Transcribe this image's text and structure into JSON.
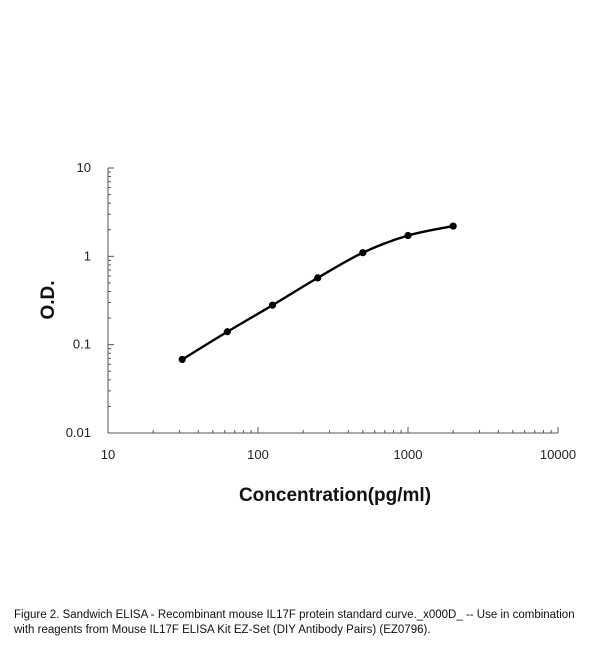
{
  "chart_data": {
    "type": "line",
    "x_scale": "log",
    "y_scale": "log",
    "xlabel": "Concentration(pg/ml)",
    "ylabel": "O.D.",
    "xlim": [
      10,
      10000
    ],
    "ylim": [
      0.01,
      10
    ],
    "x_ticks": [
      "10",
      "100",
      "1000",
      "10000"
    ],
    "y_ticks": [
      "10",
      "1",
      "0.1",
      "0.01"
    ],
    "grid": false,
    "series": [
      {
        "x": [
          31.25,
          62.5,
          125,
          250,
          500,
          1000,
          2000
        ],
        "y": [
          0.068,
          0.14,
          0.28,
          0.57,
          1.1,
          1.72,
          2.2
        ],
        "color": "#000000"
      }
    ]
  },
  "caption": "Figure 2. Sandwich ELISA - Recombinant mouse IL17F protein standard curve._x000D_ -- Use in combination with reagents from Mouse IL17F ELISA Kit EZ-Set (DIY Antibody Pairs) (EZ0796)."
}
